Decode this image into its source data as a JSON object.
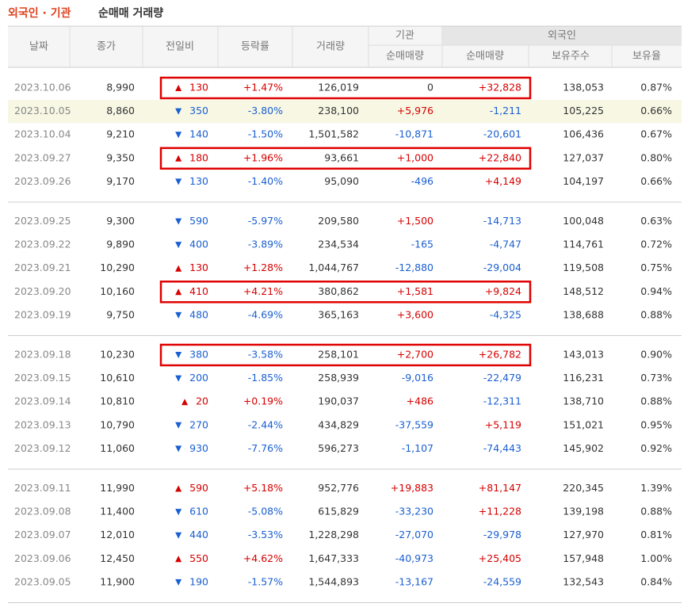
{
  "title": {
    "highlight": "외국인 · 기관",
    "rest": "순매매 거래량"
  },
  "table": {
    "columns": [
      "날짜",
      "종가",
      "전일비",
      "등락률",
      "거래량"
    ],
    "group_headers": [
      "기관",
      "외국인"
    ],
    "subcolumns": [
      "순매매량",
      "순매매량",
      "보유주수",
      "보유율"
    ],
    "groups": [
      [
        {
          "date": "2023.10.06",
          "close": "8,990",
          "dir": "up",
          "change": "130",
          "rate": "+1.47%",
          "volume": "126,019",
          "inst": "0",
          "foreign": "+32,828",
          "holdings": "138,053",
          "ratio": "0.87%",
          "boxed": true
        },
        {
          "date": "2023.10.05",
          "close": "8,860",
          "dir": "down",
          "change": "350",
          "rate": "-3.80%",
          "volume": "238,100",
          "inst": "+5,976",
          "foreign": "-1,211",
          "holdings": "105,225",
          "ratio": "0.66%",
          "hover": true
        },
        {
          "date": "2023.10.04",
          "close": "9,210",
          "dir": "down",
          "change": "140",
          "rate": "-1.50%",
          "volume": "1,501,582",
          "inst": "-10,871",
          "foreign": "-20,601",
          "holdings": "106,436",
          "ratio": "0.67%"
        },
        {
          "date": "2023.09.27",
          "close": "9,350",
          "dir": "up",
          "change": "180",
          "rate": "+1.96%",
          "volume": "93,661",
          "inst": "+1,000",
          "foreign": "+22,840",
          "holdings": "127,037",
          "ratio": "0.80%",
          "boxed": true
        },
        {
          "date": "2023.09.26",
          "close": "9,170",
          "dir": "down",
          "change": "130",
          "rate": "-1.40%",
          "volume": "95,090",
          "inst": "-496",
          "foreign": "+4,149",
          "holdings": "104,197",
          "ratio": "0.66%"
        }
      ],
      [
        {
          "date": "2023.09.25",
          "close": "9,300",
          "dir": "down",
          "change": "590",
          "rate": "-5.97%",
          "volume": "209,580",
          "inst": "+1,500",
          "foreign": "-14,713",
          "holdings": "100,048",
          "ratio": "0.63%"
        },
        {
          "date": "2023.09.22",
          "close": "9,890",
          "dir": "down",
          "change": "400",
          "rate": "-3.89%",
          "volume": "234,534",
          "inst": "-165",
          "foreign": "-4,747",
          "holdings": "114,761",
          "ratio": "0.72%"
        },
        {
          "date": "2023.09.21",
          "close": "10,290",
          "dir": "up",
          "change": "130",
          "rate": "+1.28%",
          "volume": "1,044,767",
          "inst": "-12,880",
          "foreign": "-29,004",
          "holdings": "119,508",
          "ratio": "0.75%"
        },
        {
          "date": "2023.09.20",
          "close": "10,160",
          "dir": "up",
          "change": "410",
          "rate": "+4.21%",
          "volume": "380,862",
          "inst": "+1,581",
          "foreign": "+9,824",
          "holdings": "148,512",
          "ratio": "0.94%",
          "boxed": true
        },
        {
          "date": "2023.09.19",
          "close": "9,750",
          "dir": "down",
          "change": "480",
          "rate": "-4.69%",
          "volume": "365,163",
          "inst": "+3,600",
          "foreign": "-4,325",
          "holdings": "138,688",
          "ratio": "0.88%"
        }
      ],
      [
        {
          "date": "2023.09.18",
          "close": "10,230",
          "dir": "down",
          "change": "380",
          "rate": "-3.58%",
          "volume": "258,101",
          "inst": "+2,700",
          "foreign": "+26,782",
          "holdings": "143,013",
          "ratio": "0.90%",
          "boxed": true
        },
        {
          "date": "2023.09.15",
          "close": "10,610",
          "dir": "down",
          "change": "200",
          "rate": "-1.85%",
          "volume": "258,939",
          "inst": "-9,016",
          "foreign": "-22,479",
          "holdings": "116,231",
          "ratio": "0.73%"
        },
        {
          "date": "2023.09.14",
          "close": "10,810",
          "dir": "up",
          "change": "20",
          "rate": "+0.19%",
          "volume": "190,037",
          "inst": "+486",
          "foreign": "-12,311",
          "holdings": "138,710",
          "ratio": "0.88%"
        },
        {
          "date": "2023.09.13",
          "close": "10,790",
          "dir": "down",
          "change": "270",
          "rate": "-2.44%",
          "volume": "434,829",
          "inst": "-37,559",
          "foreign": "+5,119",
          "holdings": "151,021",
          "ratio": "0.95%"
        },
        {
          "date": "2023.09.12",
          "close": "11,060",
          "dir": "down",
          "change": "930",
          "rate": "-7.76%",
          "volume": "596,273",
          "inst": "-1,107",
          "foreign": "-74,443",
          "holdings": "145,902",
          "ratio": "0.92%"
        }
      ],
      [
        {
          "date": "2023.09.11",
          "close": "11,990",
          "dir": "up",
          "change": "590",
          "rate": "+5.18%",
          "volume": "952,776",
          "inst": "+19,883",
          "foreign": "+81,147",
          "holdings": "220,345",
          "ratio": "1.39%"
        },
        {
          "date": "2023.09.08",
          "close": "11,400",
          "dir": "down",
          "change": "610",
          "rate": "-5.08%",
          "volume": "615,829",
          "inst": "-33,230",
          "foreign": "+11,228",
          "holdings": "139,198",
          "ratio": "0.88%"
        },
        {
          "date": "2023.09.07",
          "close": "12,010",
          "dir": "down",
          "change": "440",
          "rate": "-3.53%",
          "volume": "1,228,298",
          "inst": "-27,070",
          "foreign": "-29,978",
          "holdings": "127,970",
          "ratio": "0.81%"
        },
        {
          "date": "2023.09.06",
          "close": "12,450",
          "dir": "up",
          "change": "550",
          "rate": "+4.62%",
          "volume": "1,647,333",
          "inst": "-40,973",
          "foreign": "+25,405",
          "holdings": "157,948",
          "ratio": "1.00%"
        },
        {
          "date": "2023.09.05",
          "close": "11,900",
          "dir": "down",
          "change": "190",
          "rate": "-1.57%",
          "volume": "1,544,893",
          "inst": "-13,167",
          "foreign": "-24,559",
          "holdings": "132,543",
          "ratio": "0.84%"
        }
      ]
    ]
  }
}
